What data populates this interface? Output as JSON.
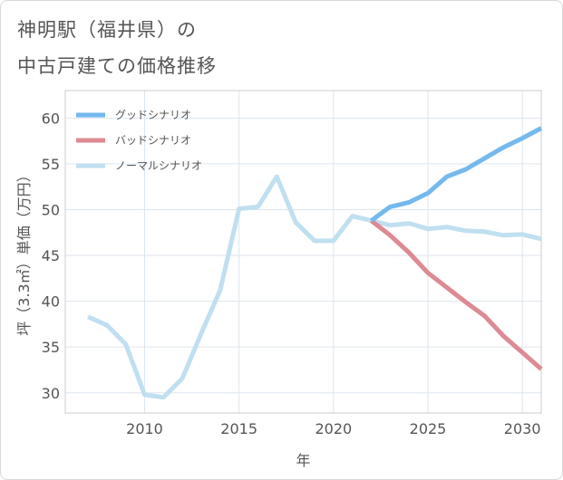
{
  "title": {
    "line1": "神明駅（福井県）の",
    "line2": "中古戸建ての価格推移"
  },
  "chart_data": {
    "type": "line",
    "xlabel": "年",
    "ylabel": "坪（3.3㎡）単価（万円）",
    "xlim": [
      2005.8,
      2031
    ],
    "ylim": [
      27.8,
      63
    ],
    "x_ticks": [
      2010,
      2015,
      2020,
      2025,
      2030
    ],
    "y_ticks": [
      30,
      35,
      40,
      45,
      50,
      55,
      60
    ],
    "legend_position": "top-left",
    "grid": true,
    "series": [
      {
        "name": "グッドシナリオ",
        "color": "#74b9ee",
        "x": [
          2022,
          2023,
          2024,
          2025,
          2026,
          2027,
          2028,
          2029,
          2030,
          2031
        ],
        "values": [
          48.8,
          50.3,
          50.8,
          51.8,
          53.6,
          54.4,
          55.6,
          56.8,
          57.8,
          58.9
        ]
      },
      {
        "name": "バッドシナリオ",
        "color": "#dd8a93",
        "x": [
          2022,
          2023,
          2024,
          2025,
          2026,
          2027,
          2028,
          2029,
          2030,
          2031
        ],
        "values": [
          48.8,
          47.2,
          45.3,
          43.1,
          41.5,
          39.9,
          38.4,
          36.2,
          34.4,
          32.6
        ]
      },
      {
        "name": "ノーマルシナリオ",
        "color": "#c0dff0",
        "x": [
          2007,
          2008,
          2009,
          2010,
          2011,
          2012,
          2013,
          2014,
          2015,
          2016,
          2017,
          2018,
          2019,
          2020,
          2021,
          2022,
          2023,
          2024,
          2025,
          2026,
          2027,
          2028,
          2029,
          2030,
          2031
        ],
        "values": [
          38.3,
          37.4,
          35.3,
          29.8,
          29.5,
          31.6,
          36.5,
          41.2,
          50.1,
          50.3,
          53.6,
          48.6,
          46.6,
          46.6,
          49.3,
          48.8,
          48.3,
          48.5,
          47.9,
          48.1,
          47.7,
          47.6,
          47.2,
          47.3,
          46.8
        ]
      }
    ]
  }
}
